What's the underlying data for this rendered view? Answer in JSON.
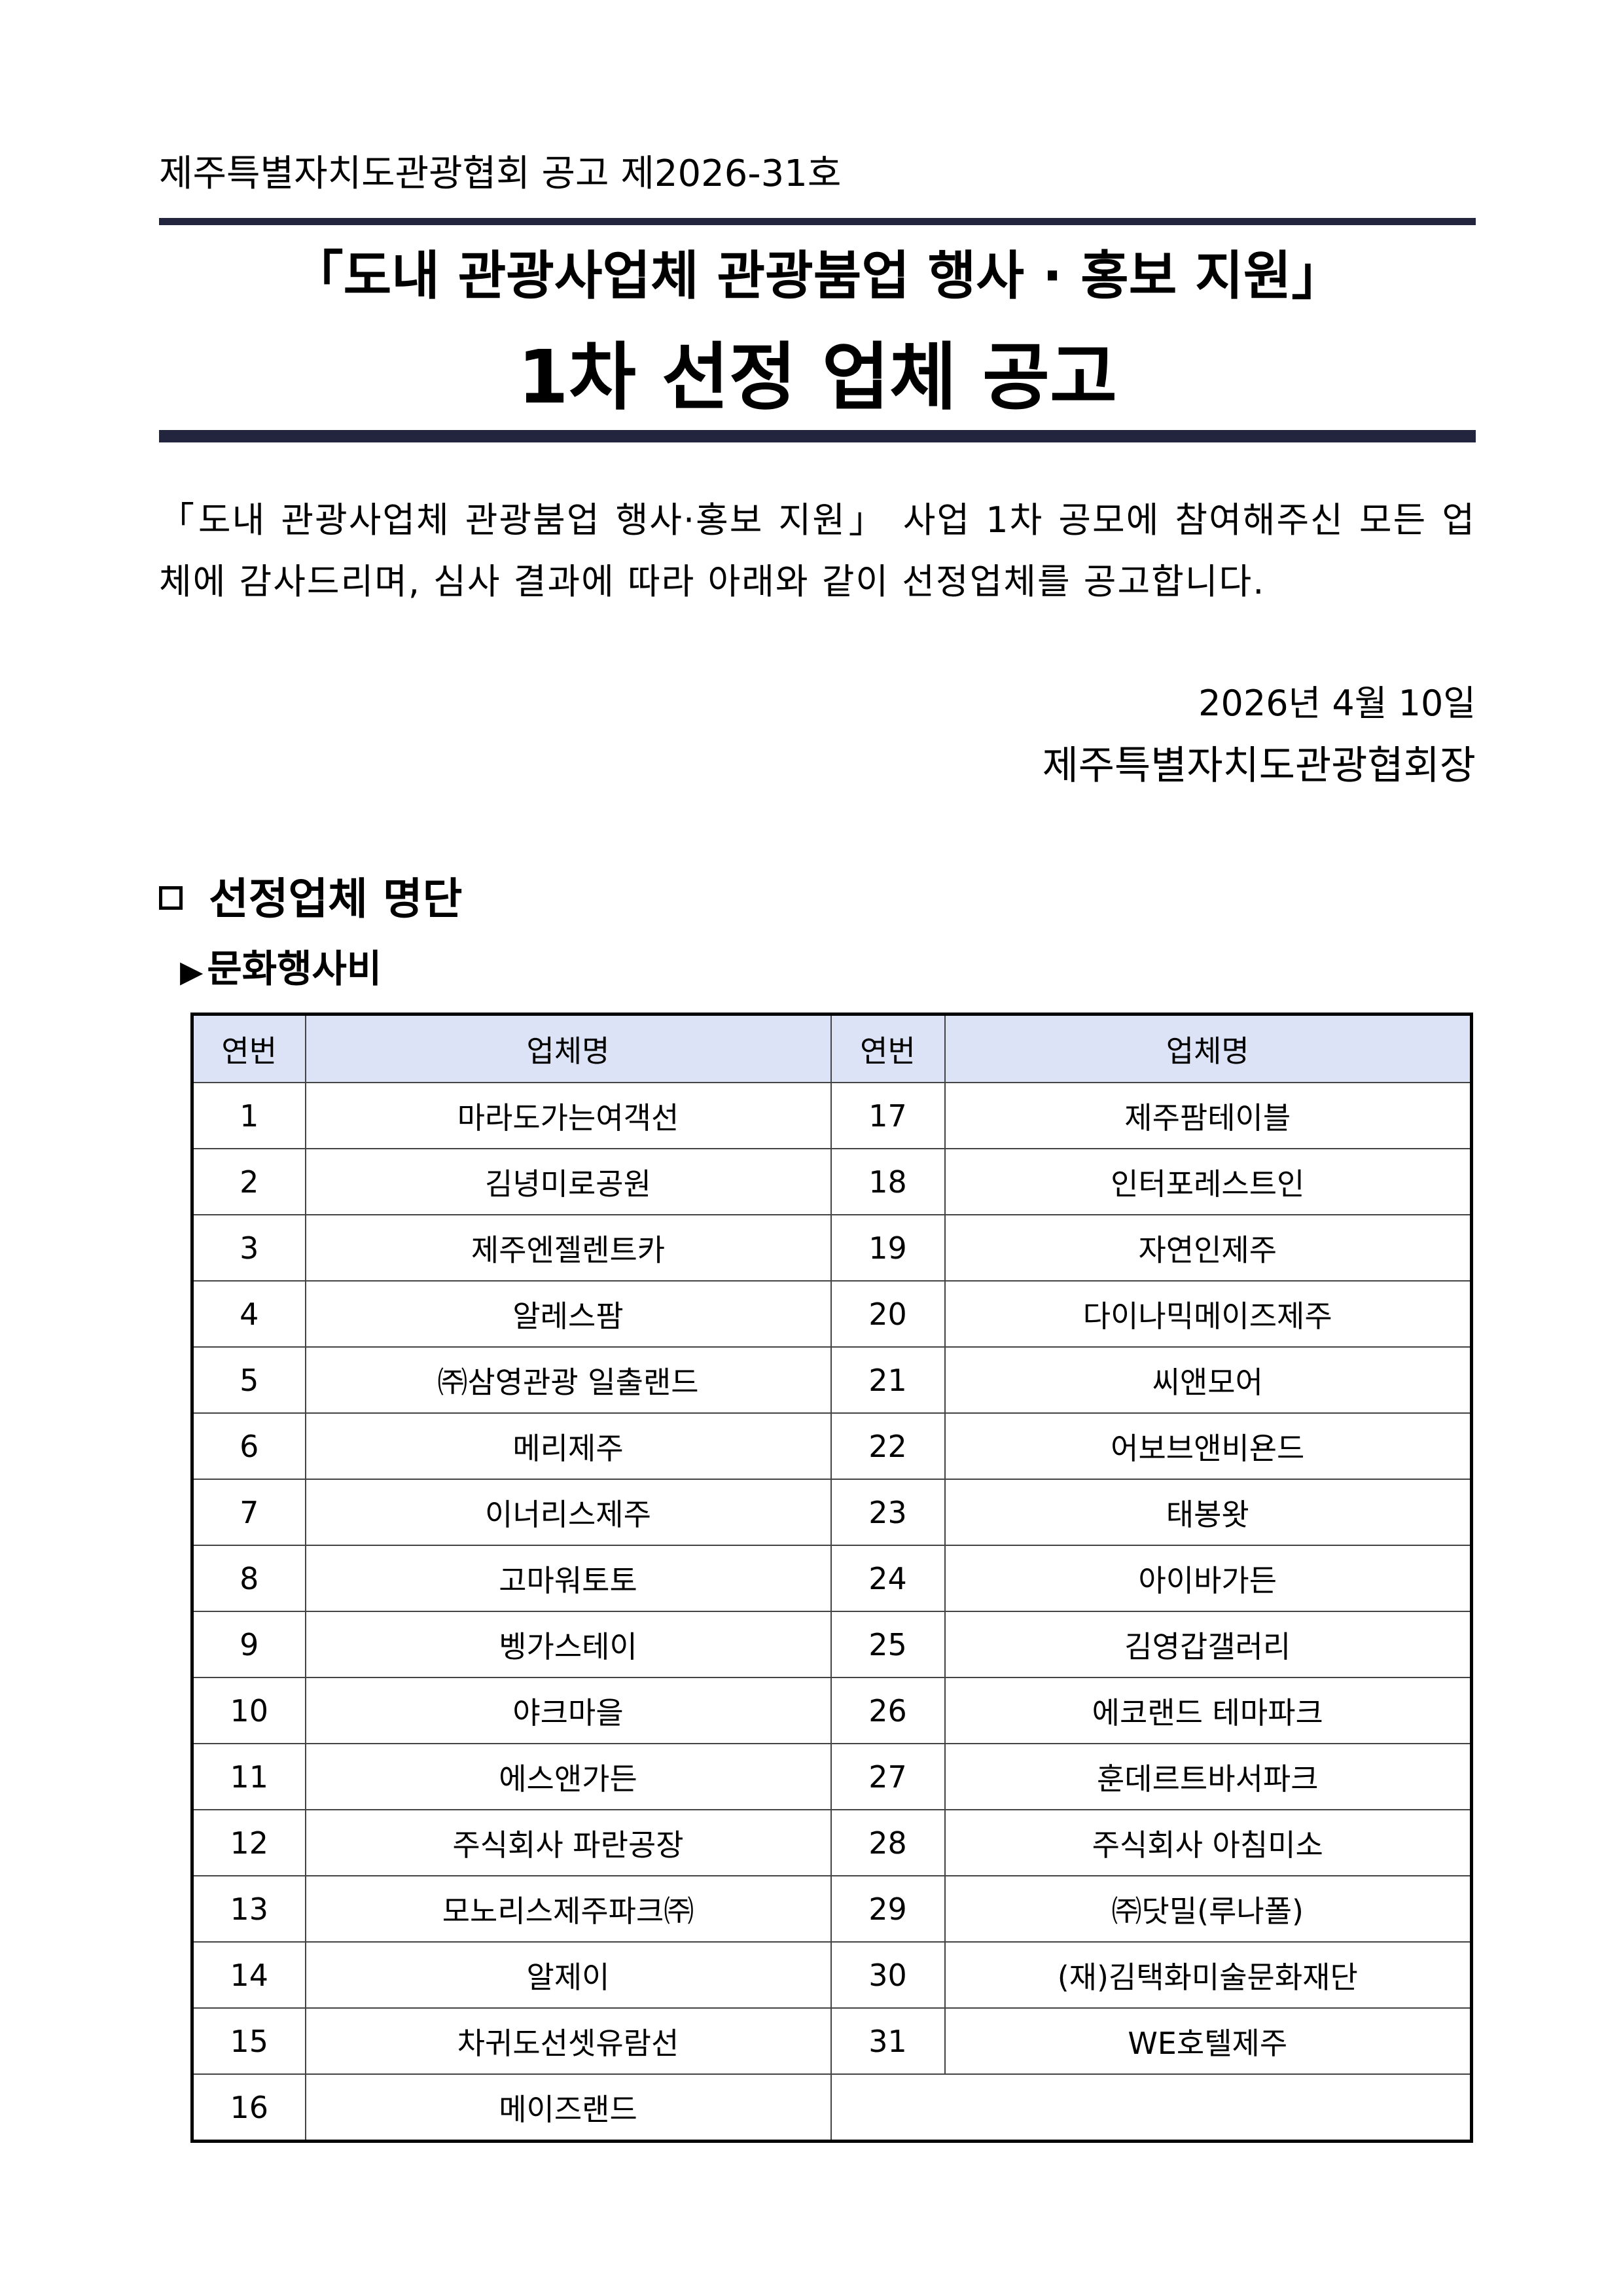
{
  "notice_number": "제주특별자치도관광협회 공고 제2026-31호",
  "title": {
    "line1": "「도내 관광사업체 관광붐업 행사 · 홍보 지원」",
    "line2": "1차 선정 업체 공고"
  },
  "intro": "「도내 관광사업체 관광붐업 행사·홍보 지원」 사업 1차 공모에 참여해주신 모든 업체에 감사드리며, 심사 결과에 따라 아래와 같이 선정업체를 공고합니다.",
  "date": "2026년 4월 10일",
  "issuer": "제주특별자치도관광협회장",
  "section": {
    "icon": "square-bullet-icon",
    "heading": "선정업체 명단"
  },
  "subsection": {
    "icon": "triangle-right-icon",
    "marker": "▶",
    "heading": "문화행사비"
  },
  "colors": {
    "rule": "#23253f",
    "table_header_bg": "#dce3f6"
  },
  "table": {
    "headers": [
      "연번",
      "업체명",
      "연번",
      "업체명"
    ],
    "rows": [
      [
        "1",
        "마라도가는여객선",
        "17",
        "제주팜테이블"
      ],
      [
        "2",
        "김녕미로공원",
        "18",
        "인터포레스트인"
      ],
      [
        "3",
        "제주엔젤렌트카",
        "19",
        "자연인제주"
      ],
      [
        "4",
        "알레스팜",
        "20",
        "다이나믹메이즈제주"
      ],
      [
        "5",
        "㈜삼영관광 일출랜드",
        "21",
        "씨앤모어"
      ],
      [
        "6",
        "메리제주",
        "22",
        "어보브앤비욘드"
      ],
      [
        "7",
        "이너리스제주",
        "23",
        "태봉왓"
      ],
      [
        "8",
        "고마워토토",
        "24",
        "아이바가든"
      ],
      [
        "9",
        "벵가스테이",
        "25",
        "김영갑갤러리"
      ],
      [
        "10",
        "야크마을",
        "26",
        "에코랜드 테마파크"
      ],
      [
        "11",
        "에스앤가든",
        "27",
        "훈데르트바서파크"
      ],
      [
        "12",
        "주식회사 파란공장",
        "28",
        "주식회사 아침미소"
      ],
      [
        "13",
        "모노리스제주파크㈜",
        "29",
        "㈜닷밀(루나폴)"
      ],
      [
        "14",
        "알제이",
        "30",
        "(재)김택화미술문화재단"
      ],
      [
        "15",
        "차귀도선셋유람선",
        "31",
        "WE호텔제주"
      ],
      [
        "16",
        "메이즈랜드",
        "",
        ""
      ]
    ]
  }
}
